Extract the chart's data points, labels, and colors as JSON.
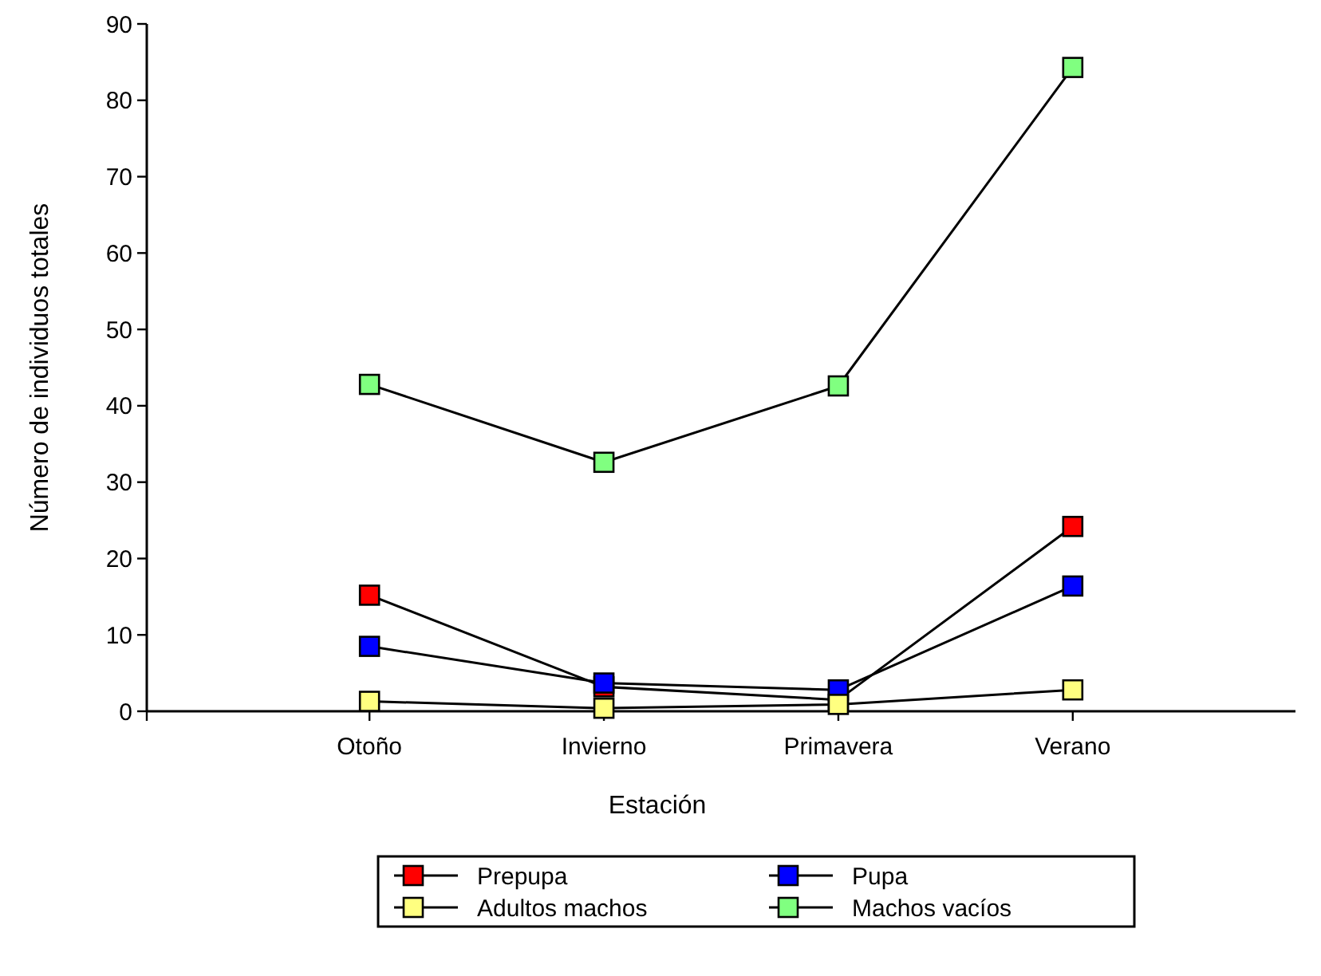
{
  "chart_data": {
    "type": "line",
    "xlabel": "Estación",
    "ylabel": "Número de individuos totales",
    "categories": [
      "Otoño",
      "Invierno",
      "Primavera",
      "Verano"
    ],
    "ylim": [
      0,
      90
    ],
    "yticks": [
      0,
      10,
      20,
      30,
      40,
      50,
      60,
      70,
      80,
      90
    ],
    "marker": "square",
    "legend": "bottom",
    "grid": false,
    "series": [
      {
        "name": "Prepupa",
        "color": "#ff0000",
        "values": [
          15.2,
          3.2,
          1.5,
          24.2
        ]
      },
      {
        "name": "Pupa",
        "color": "#0000ff",
        "values": [
          8.5,
          3.7,
          2.8,
          16.4
        ]
      },
      {
        "name": "Adultos machos",
        "color": "#ffff80",
        "values": [
          1.3,
          0.4,
          0.9,
          2.8
        ]
      },
      {
        "name": "Machos vacíos",
        "color": "#80ff80",
        "values": [
          42.8,
          32.6,
          42.6,
          84.3
        ]
      }
    ]
  }
}
